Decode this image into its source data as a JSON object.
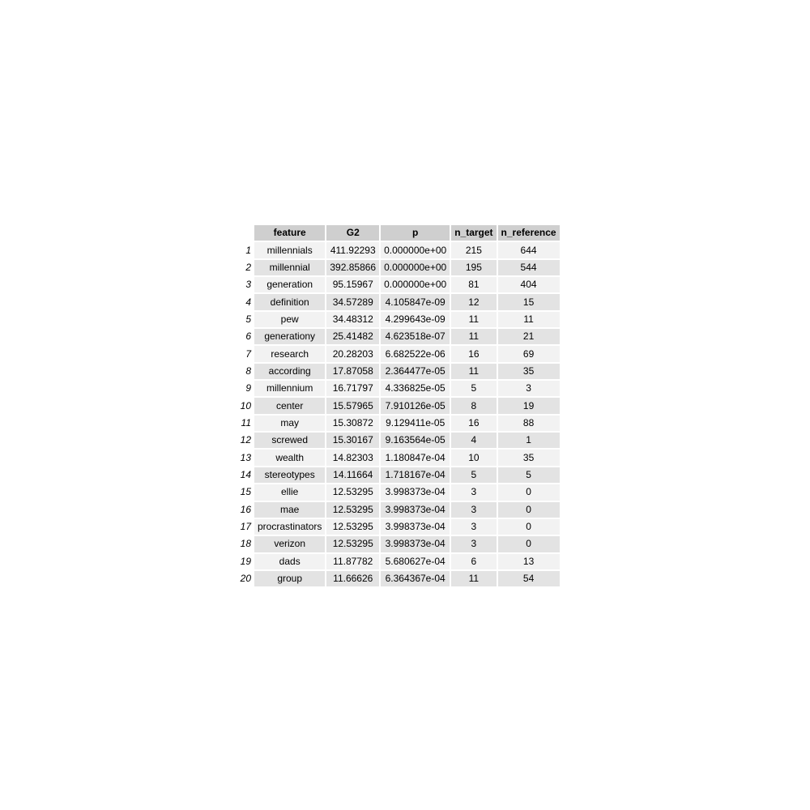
{
  "chart_data": {
    "type": "table",
    "columns": [
      "feature",
      "G2",
      "p",
      "n_target",
      "n_reference"
    ],
    "rows": [
      {
        "index": "1",
        "feature": "millennials",
        "G2": "411.92293",
        "p": "0.000000e+00",
        "n_target": "215",
        "n_reference": "644"
      },
      {
        "index": "2",
        "feature": "millennial",
        "G2": "392.85866",
        "p": "0.000000e+00",
        "n_target": "195",
        "n_reference": "544"
      },
      {
        "index": "3",
        "feature": "generation",
        "G2": "95.15967",
        "p": "0.000000e+00",
        "n_target": "81",
        "n_reference": "404"
      },
      {
        "index": "4",
        "feature": "definition",
        "G2": "34.57289",
        "p": "4.105847e-09",
        "n_target": "12",
        "n_reference": "15"
      },
      {
        "index": "5",
        "feature": "pew",
        "G2": "34.48312",
        "p": "4.299643e-09",
        "n_target": "11",
        "n_reference": "11"
      },
      {
        "index": "6",
        "feature": "generationy",
        "G2": "25.41482",
        "p": "4.623518e-07",
        "n_target": "11",
        "n_reference": "21"
      },
      {
        "index": "7",
        "feature": "research",
        "G2": "20.28203",
        "p": "6.682522e-06",
        "n_target": "16",
        "n_reference": "69"
      },
      {
        "index": "8",
        "feature": "according",
        "G2": "17.87058",
        "p": "2.364477e-05",
        "n_target": "11",
        "n_reference": "35"
      },
      {
        "index": "9",
        "feature": "millennium",
        "G2": "16.71797",
        "p": "4.336825e-05",
        "n_target": "5",
        "n_reference": "3"
      },
      {
        "index": "10",
        "feature": "center",
        "G2": "15.57965",
        "p": "7.910126e-05",
        "n_target": "8",
        "n_reference": "19"
      },
      {
        "index": "11",
        "feature": "may",
        "G2": "15.30872",
        "p": "9.129411e-05",
        "n_target": "16",
        "n_reference": "88"
      },
      {
        "index": "12",
        "feature": "screwed",
        "G2": "15.30167",
        "p": "9.163564e-05",
        "n_target": "4",
        "n_reference": "1"
      },
      {
        "index": "13",
        "feature": "wealth",
        "G2": "14.82303",
        "p": "1.180847e-04",
        "n_target": "10",
        "n_reference": "35"
      },
      {
        "index": "14",
        "feature": "stereotypes",
        "G2": "14.11664",
        "p": "1.718167e-04",
        "n_target": "5",
        "n_reference": "5"
      },
      {
        "index": "15",
        "feature": "ellie",
        "G2": "12.53295",
        "p": "3.998373e-04",
        "n_target": "3",
        "n_reference": "0"
      },
      {
        "index": "16",
        "feature": "mae",
        "G2": "12.53295",
        "p": "3.998373e-04",
        "n_target": "3",
        "n_reference": "0"
      },
      {
        "index": "17",
        "feature": "procrastinators",
        "G2": "12.53295",
        "p": "3.998373e-04",
        "n_target": "3",
        "n_reference": "0"
      },
      {
        "index": "18",
        "feature": "verizon",
        "G2": "12.53295",
        "p": "3.998373e-04",
        "n_target": "3",
        "n_reference": "0"
      },
      {
        "index": "19",
        "feature": "dads",
        "G2": "11.87782",
        "p": "5.680627e-04",
        "n_target": "6",
        "n_reference": "13"
      },
      {
        "index": "20",
        "feature": "group",
        "G2": "11.66626",
        "p": "6.364367e-04",
        "n_target": "11",
        "n_reference": "54"
      }
    ]
  },
  "colors": {
    "header_bg": "#cfcfcf",
    "row_odd_bg": "#f2f2f2",
    "row_even_bg": "#e3e3e3",
    "text": "#000000"
  }
}
